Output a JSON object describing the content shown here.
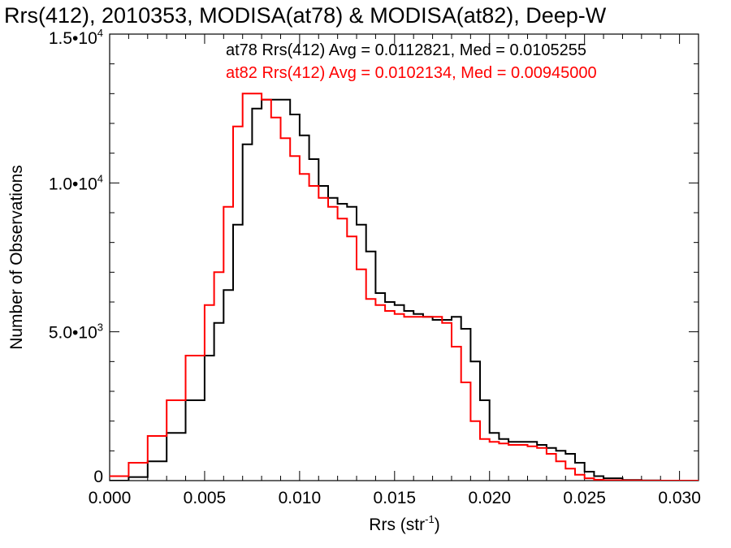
{
  "chart_data": {
    "type": "line",
    "title": "Rrs(412), 2010353, MODISA(at78) & MODISA(at82), Deep-W",
    "xlabel": "Rrs (str",
    "xlabel_sup": "-1",
    "xlabel_close": ")",
    "ylabel": "Number of Observations",
    "xlim": [
      0.0,
      0.031
    ],
    "ylim": [
      0,
      15000
    ],
    "xticks": [
      {
        "value": 0.0,
        "label": "0.000"
      },
      {
        "value": 0.005,
        "label": "0.005"
      },
      {
        "value": 0.01,
        "label": "0.010"
      },
      {
        "value": 0.015,
        "label": "0.015"
      },
      {
        "value": 0.02,
        "label": "0.020"
      },
      {
        "value": 0.025,
        "label": "0.025"
      },
      {
        "value": 0.03,
        "label": "0.030"
      }
    ],
    "yticks": [
      {
        "value": 0,
        "mant": "0",
        "exp": ""
      },
      {
        "value": 5000,
        "mant": "5.0•10",
        "exp": "3"
      },
      {
        "value": 10000,
        "mant": "1.0•10",
        "exp": "4"
      },
      {
        "value": 15000,
        "mant": "1.5•10",
        "exp": "4"
      }
    ],
    "grid": false,
    "legend_position": "top-right",
    "series": [
      {
        "name": "at78",
        "color": "#000000",
        "x": [
          0.0,
          0.001,
          0.002,
          0.003,
          0.004,
          0.005,
          0.0055,
          0.006,
          0.0065,
          0.007,
          0.0075,
          0.008,
          0.0085,
          0.009,
          0.0095,
          0.01,
          0.0105,
          0.011,
          0.0115,
          0.012,
          0.0125,
          0.013,
          0.0135,
          0.014,
          0.0145,
          0.015,
          0.0155,
          0.016,
          0.0165,
          0.017,
          0.0175,
          0.018,
          0.0185,
          0.019,
          0.0195,
          0.02,
          0.0205,
          0.021,
          0.0215,
          0.022,
          0.0225,
          0.023,
          0.0235,
          0.024,
          0.0245,
          0.025,
          0.0255,
          0.026,
          0.027,
          0.028,
          0.029,
          0.03,
          0.031
        ],
        "values": [
          0,
          120,
          650,
          1600,
          2700,
          4200,
          5300,
          6400,
          8600,
          11300,
          12500,
          12800,
          12800,
          12800,
          12300,
          11600,
          10800,
          9900,
          9500,
          9300,
          9200,
          8600,
          7700,
          6300,
          6000,
          5900,
          5700,
          5600,
          5500,
          5400,
          5400,
          5500,
          5100,
          4000,
          2700,
          1600,
          1400,
          1300,
          1300,
          1300,
          1200,
          1100,
          1000,
          900,
          600,
          300,
          150,
          80,
          20,
          5,
          0,
          0,
          0
        ]
      },
      {
        "name": "at82",
        "color": "#ff0000",
        "x": [
          0.0,
          0.001,
          0.002,
          0.003,
          0.004,
          0.005,
          0.0055,
          0.006,
          0.0065,
          0.007,
          0.0075,
          0.008,
          0.0085,
          0.009,
          0.0095,
          0.01,
          0.0105,
          0.011,
          0.0115,
          0.012,
          0.0125,
          0.013,
          0.0135,
          0.014,
          0.0145,
          0.015,
          0.0155,
          0.016,
          0.0165,
          0.017,
          0.0175,
          0.018,
          0.0185,
          0.019,
          0.0195,
          0.02,
          0.0205,
          0.021,
          0.0215,
          0.022,
          0.0225,
          0.023,
          0.0235,
          0.024,
          0.0245,
          0.025,
          0.0255,
          0.026,
          0.027,
          0.028,
          0.029,
          0.03,
          0.031
        ],
        "values": [
          150,
          600,
          1500,
          2700,
          4200,
          5900,
          7000,
          9200,
          11900,
          13000,
          13000,
          12800,
          12200,
          11500,
          10900,
          10300,
          9900,
          9500,
          9200,
          8800,
          8200,
          7100,
          6100,
          5900,
          5700,
          5600,
          5500,
          5500,
          5500,
          5500,
          5300,
          4500,
          3300,
          2000,
          1400,
          1300,
          1250,
          1200,
          1200,
          1150,
          1100,
          900,
          650,
          400,
          200,
          80,
          30,
          10,
          5,
          0,
          0,
          0,
          0
        ]
      }
    ],
    "annotations": [
      {
        "text": "at78 Rrs(412) Avg = 0.0112821, Med = 0.0105255",
        "color": "#000000"
      },
      {
        "text": "at82 Rrs(412) Avg = 0.0102134, Med = 0.00945000",
        "color": "#ff0000"
      }
    ]
  }
}
